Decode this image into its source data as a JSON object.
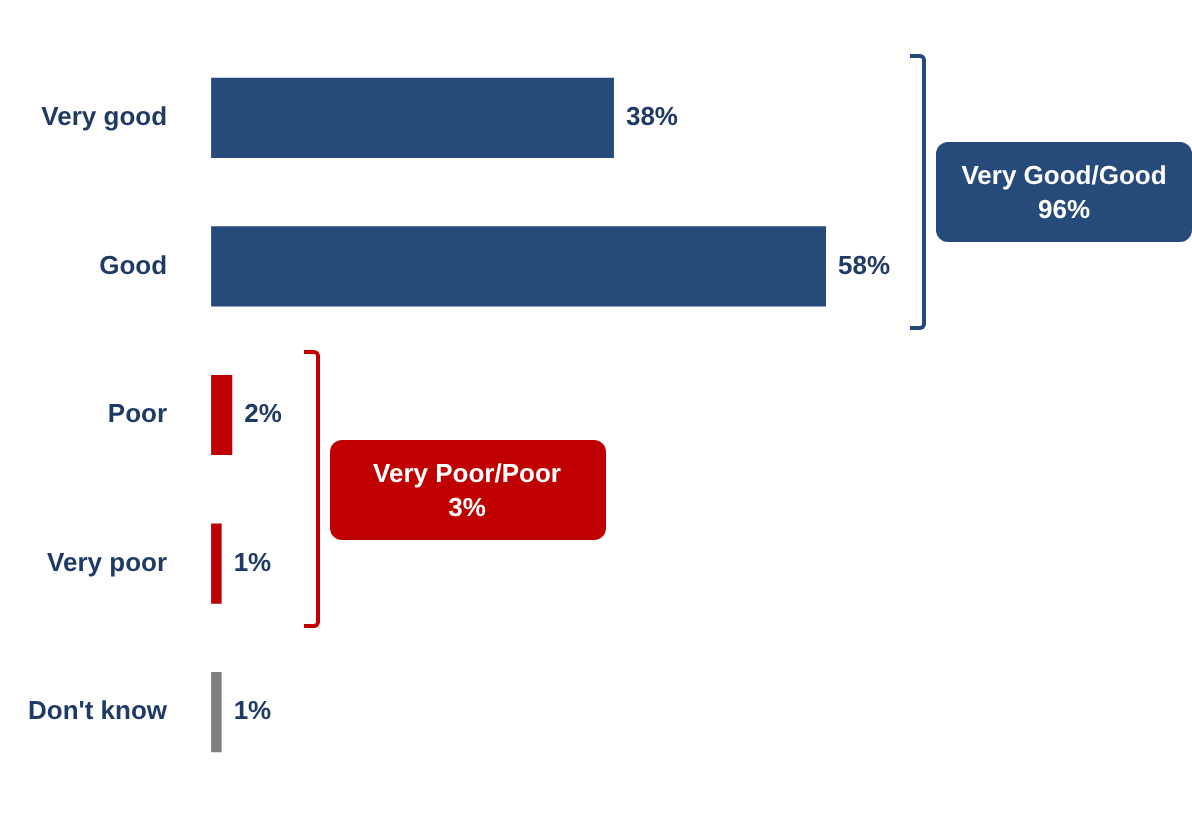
{
  "chart_data": {
    "type": "bar",
    "orientation": "horizontal",
    "categories": [
      "Very good",
      "Good",
      "Poor",
      "Very poor",
      "Don't know"
    ],
    "values": [
      38,
      58,
      2,
      1,
      1
    ],
    "colors": [
      "#264b7a",
      "#264b7a",
      "#c00000",
      "#c00000",
      "#7f7f7f"
    ],
    "value_labels": [
      "38%",
      "58%",
      "2%",
      "1%",
      "1%"
    ],
    "legend": false,
    "tick_labels": "y",
    "annotations": [
      "Very Good/Good\n96%",
      "Very Poor/Poor\n3%"
    ]
  }
}
